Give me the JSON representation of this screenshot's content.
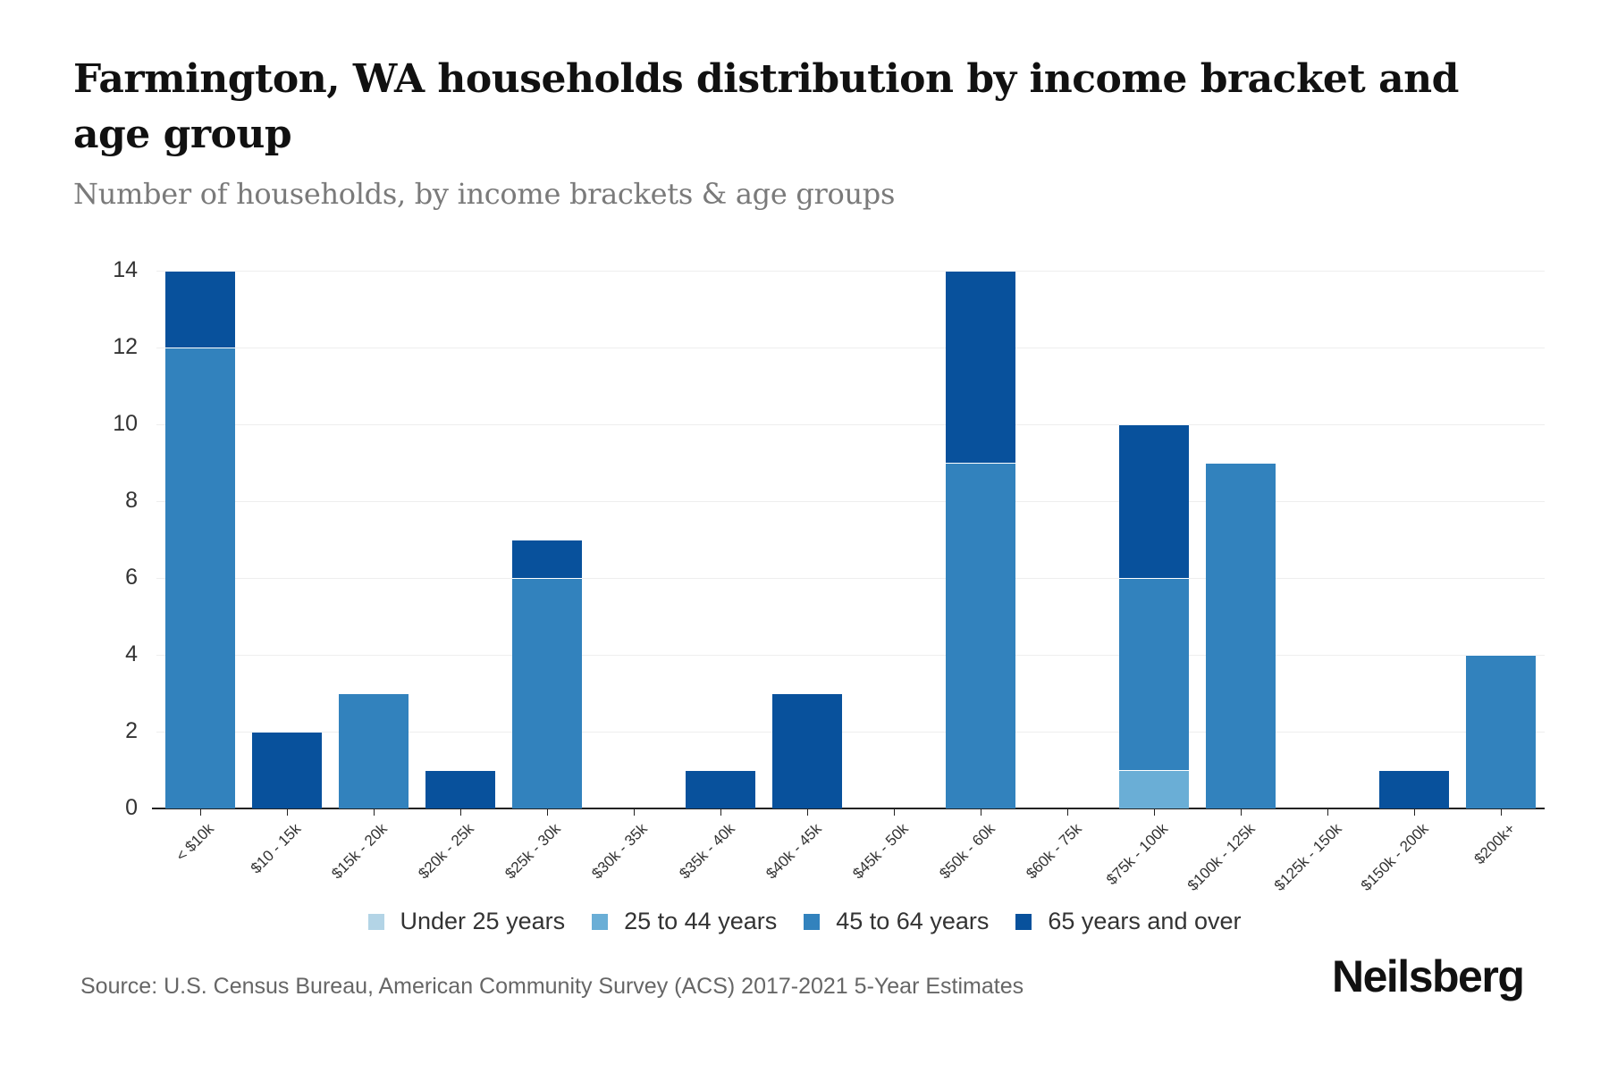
{
  "header": {
    "title": "Farmington, WA households distribution by income bracket and age group",
    "subtitle": "Number of households, by income brackets & age groups"
  },
  "legend": {
    "items": [
      {
        "label": "Under 25 years",
        "color": "#b3d4e6"
      },
      {
        "label": "25 to 44 years",
        "color": "#6aaed6"
      },
      {
        "label": "45 to 64 years",
        "color": "#3282bd"
      },
      {
        "label": "65 years and over",
        "color": "#08519c"
      }
    ]
  },
  "footer": {
    "source": "Source: U.S. Census Bureau, American Community Survey (ACS) 2017-2021 5-Year Estimates",
    "logo": "Neilsberg"
  },
  "chart_data": {
    "type": "bar",
    "stacked": true,
    "title": "Farmington, WA households distribution by income bracket and age group",
    "subtitle": "Number of households, by income brackets & age groups",
    "xlabel": "",
    "ylabel": "",
    "ylim": [
      0,
      14
    ],
    "yticks": [
      0,
      2,
      4,
      6,
      8,
      10,
      12,
      14
    ],
    "grid": true,
    "legend_position": "bottom",
    "categories": [
      "< $10k",
      "$10 - 15k",
      "$15k - 20k",
      "$20k - 25k",
      "$25k - 30k",
      "$30k - 35k",
      "$35k - 40k",
      "$40k - 45k",
      "$45k - 50k",
      "$50k - 60k",
      "$60k - 75k",
      "$75k - 100k",
      "$100k - 125k",
      "$125k - 150k",
      "$150k - 200k",
      "$200k+"
    ],
    "series": [
      {
        "name": "Under 25 years",
        "color": "#b3d4e6",
        "values": [
          0,
          0,
          0,
          0,
          0,
          0,
          0,
          0,
          0,
          0,
          0,
          0,
          0,
          0,
          0,
          0
        ]
      },
      {
        "name": "25 to 44 years",
        "color": "#6aaed6",
        "values": [
          0,
          0,
          0,
          0,
          0,
          0,
          0,
          0,
          0,
          0,
          0,
          1,
          0,
          0,
          0,
          0
        ]
      },
      {
        "name": "45 to 64 years",
        "color": "#3282bd",
        "values": [
          12,
          0,
          3,
          0,
          6,
          0,
          0,
          0,
          0,
          9,
          0,
          5,
          9,
          0,
          0,
          4
        ]
      },
      {
        "name": "65 years and over",
        "color": "#08519c",
        "values": [
          2,
          2,
          0,
          1,
          1,
          0,
          1,
          3,
          0,
          5,
          0,
          4,
          0,
          0,
          1,
          0
        ]
      }
    ],
    "source": "Source: U.S. Census Bureau, American Community Survey (ACS) 2017-2021 5-Year Estimates"
  }
}
